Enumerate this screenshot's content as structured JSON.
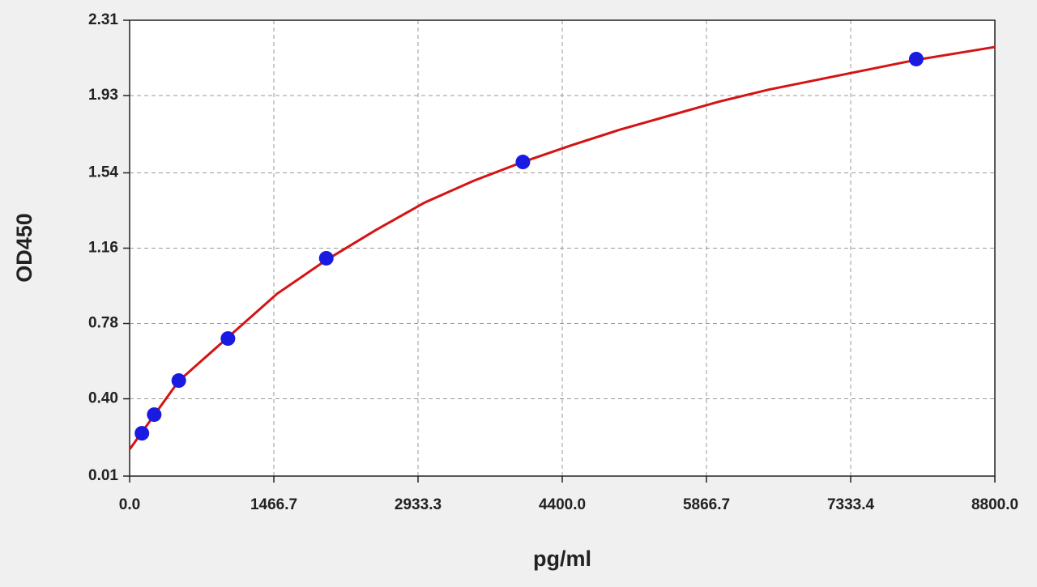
{
  "chart_data": {
    "type": "scatter",
    "xlabel": "pg/ml",
    "ylabel": "OD450",
    "xlim": [
      0,
      8800
    ],
    "ylim": [
      0.01,
      2.31
    ],
    "xticks": [
      {
        "value": 0,
        "label": "0.0"
      },
      1466.7,
      2933.3,
      {
        "value": 4400,
        "label": "4400.0"
      },
      5866.7,
      7333.4,
      {
        "value": 8800,
        "label": "8800.0"
      }
    ],
    "yticks": [
      0.01,
      {
        "value": 0.4,
        "label": "0.40"
      },
      0.78,
      1.16,
      1.54,
      1.93,
      2.31
    ],
    "grid": true,
    "series": [
      {
        "mode": "markers",
        "color": "#1a1ae0",
        "x": [
          125,
          250,
          500,
          1000,
          2000,
          4000,
          8000
        ],
        "values": [
          0.226,
          0.32,
          0.492,
          0.704,
          1.109,
          1.595,
          2.114
        ]
      },
      {
        "mode": "line",
        "color": "#d41414",
        "x": [
          0,
          500,
          1000,
          1500,
          2000,
          2500,
          3000,
          3500,
          4000,
          4500,
          5000,
          5500,
          6000,
          6500,
          7000,
          7500,
          8000,
          8800
        ],
        "values": [
          0.145,
          0.49,
          0.71,
          0.93,
          1.1,
          1.25,
          1.39,
          1.5,
          1.595,
          1.68,
          1.76,
          1.83,
          1.9,
          1.96,
          2.01,
          2.06,
          2.11,
          2.175
        ]
      }
    ]
  }
}
